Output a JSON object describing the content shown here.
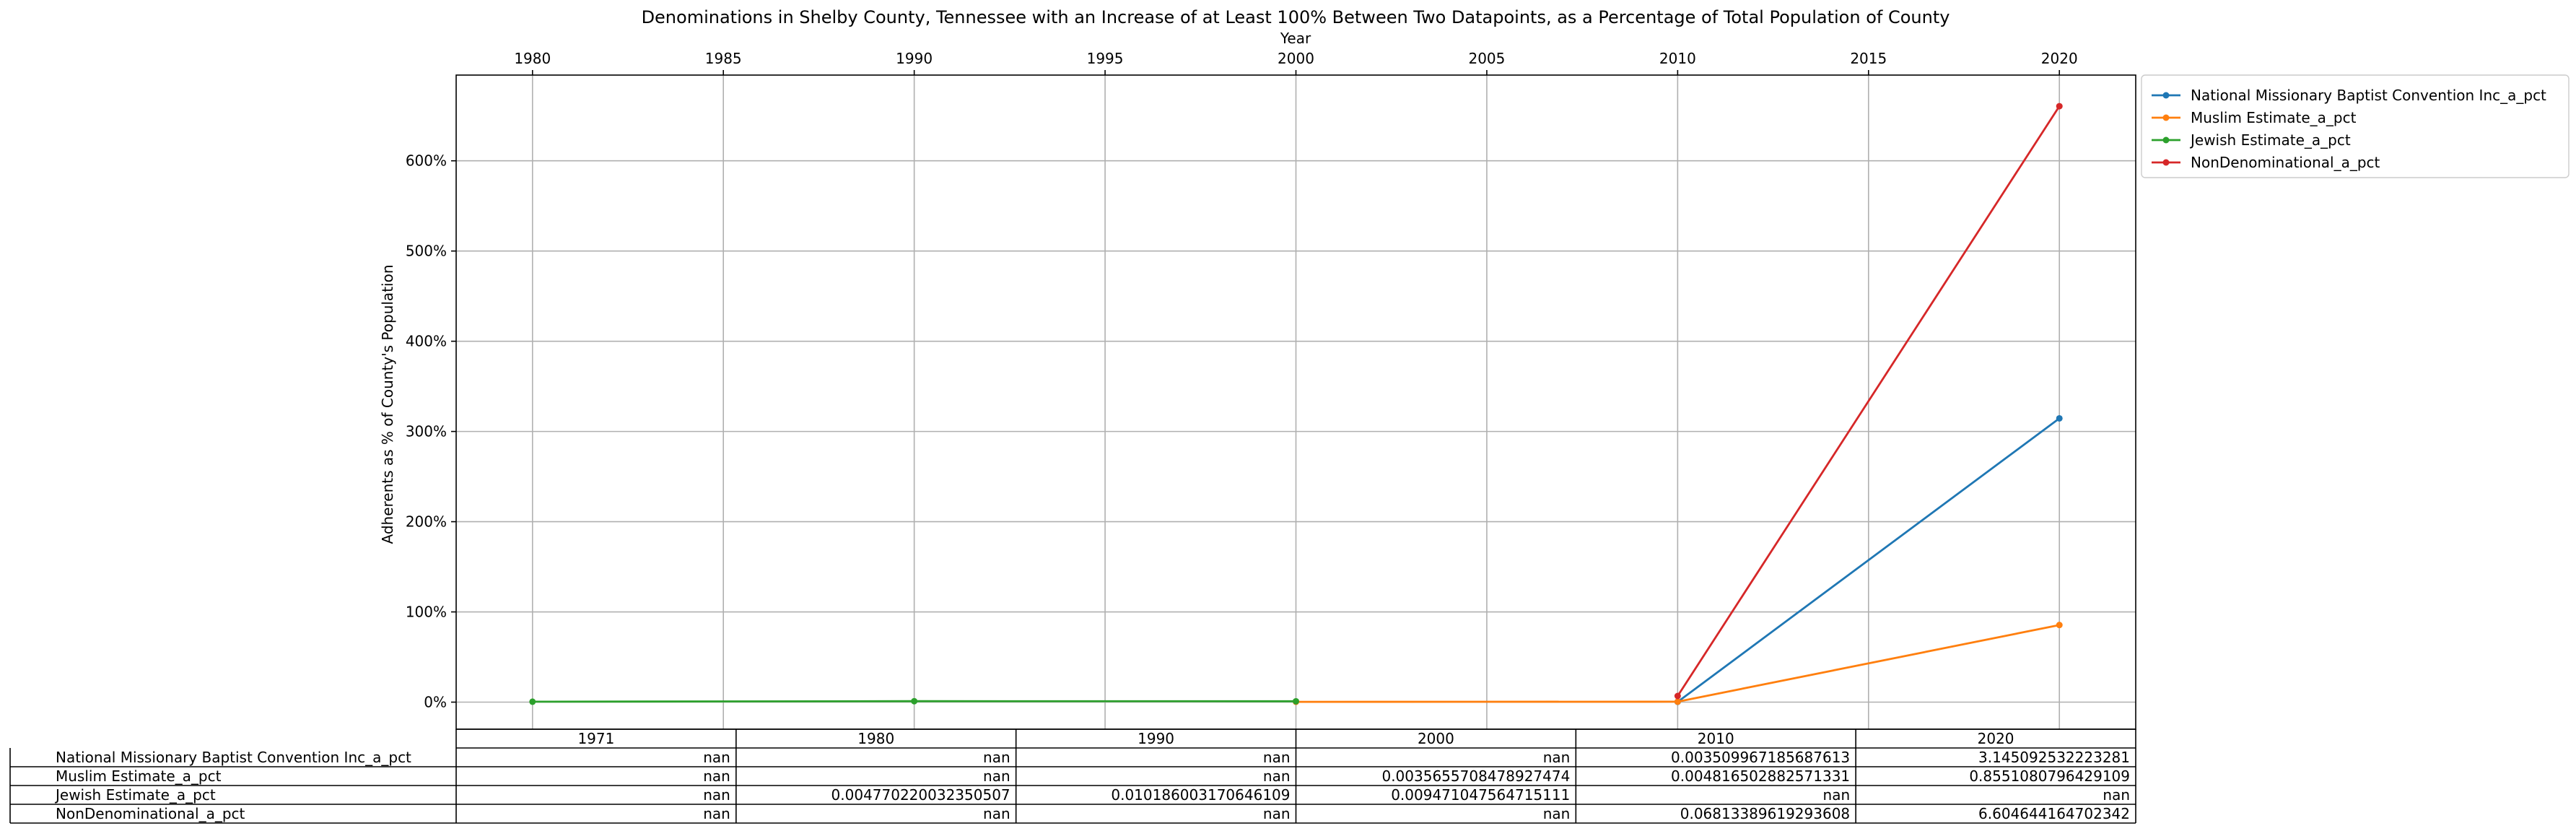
{
  "chart_data": {
    "type": "line",
    "title": "Denominations in Shelby County, Tennessee with an Increase of at Least 100% Between Two Datapoints, as a Percentage of Total Population of County",
    "xlabel": "Year",
    "ylabel": "Adherents as % of County's Population",
    "xlim": [
      1978,
      2022
    ],
    "ylim": [
      -30,
      695
    ],
    "x_ticks": [
      1980,
      1985,
      1990,
      1995,
      2000,
      2005,
      2010,
      2015,
      2020
    ],
    "y_ticks": [
      0,
      100,
      200,
      300,
      400,
      500,
      600
    ],
    "y_tick_format": "{v}%",
    "grid": true,
    "legend_position": "outside-right-top",
    "series": [
      {
        "name": "National Missionary Baptist Convention Inc_a_pct",
        "color": "#1f77b4",
        "points": [
          [
            2010,
            0.35
          ],
          [
            2020,
            314.5
          ]
        ]
      },
      {
        "name": "Muslim Estimate_a_pct",
        "color": "#ff7f0e",
        "points": [
          [
            2000,
            0.36
          ],
          [
            2010,
            0.48
          ],
          [
            2020,
            85.5
          ]
        ]
      },
      {
        "name": "Jewish Estimate_a_pct",
        "color": "#2ca02c",
        "points": [
          [
            1980,
            0.48
          ],
          [
            1990,
            1.02
          ],
          [
            2000,
            0.95
          ]
        ]
      },
      {
        "name": "NonDenominational_a_pct",
        "color": "#d62728",
        "points": [
          [
            2010,
            6.81
          ],
          [
            2020,
            660.5
          ]
        ]
      }
    ],
    "table": {
      "columns": [
        "1971",
        "1980",
        "1990",
        "2000",
        "2010",
        "2020"
      ],
      "rows": [
        {
          "label": "National Missionary Baptist Convention Inc_a_pct",
          "cells": [
            "nan",
            "nan",
            "nan",
            "nan",
            "0.003509967185687613",
            "3.145092532223281"
          ]
        },
        {
          "label": "Muslim Estimate_a_pct",
          "cells": [
            "nan",
            "nan",
            "nan",
            "0.0035655708478927474",
            "0.004816502882571331",
            "0.8551080796429109"
          ]
        },
        {
          "label": "Jewish Estimate_a_pct",
          "cells": [
            "nan",
            "0.004770220032350507",
            "0.010186003170646109",
            "0.009471047564715111",
            "nan",
            "nan"
          ]
        },
        {
          "label": "NonDenominational_a_pct",
          "cells": [
            "nan",
            "nan",
            "nan",
            "nan",
            "0.06813389619293608",
            "6.604644164702342"
          ]
        }
      ]
    }
  }
}
